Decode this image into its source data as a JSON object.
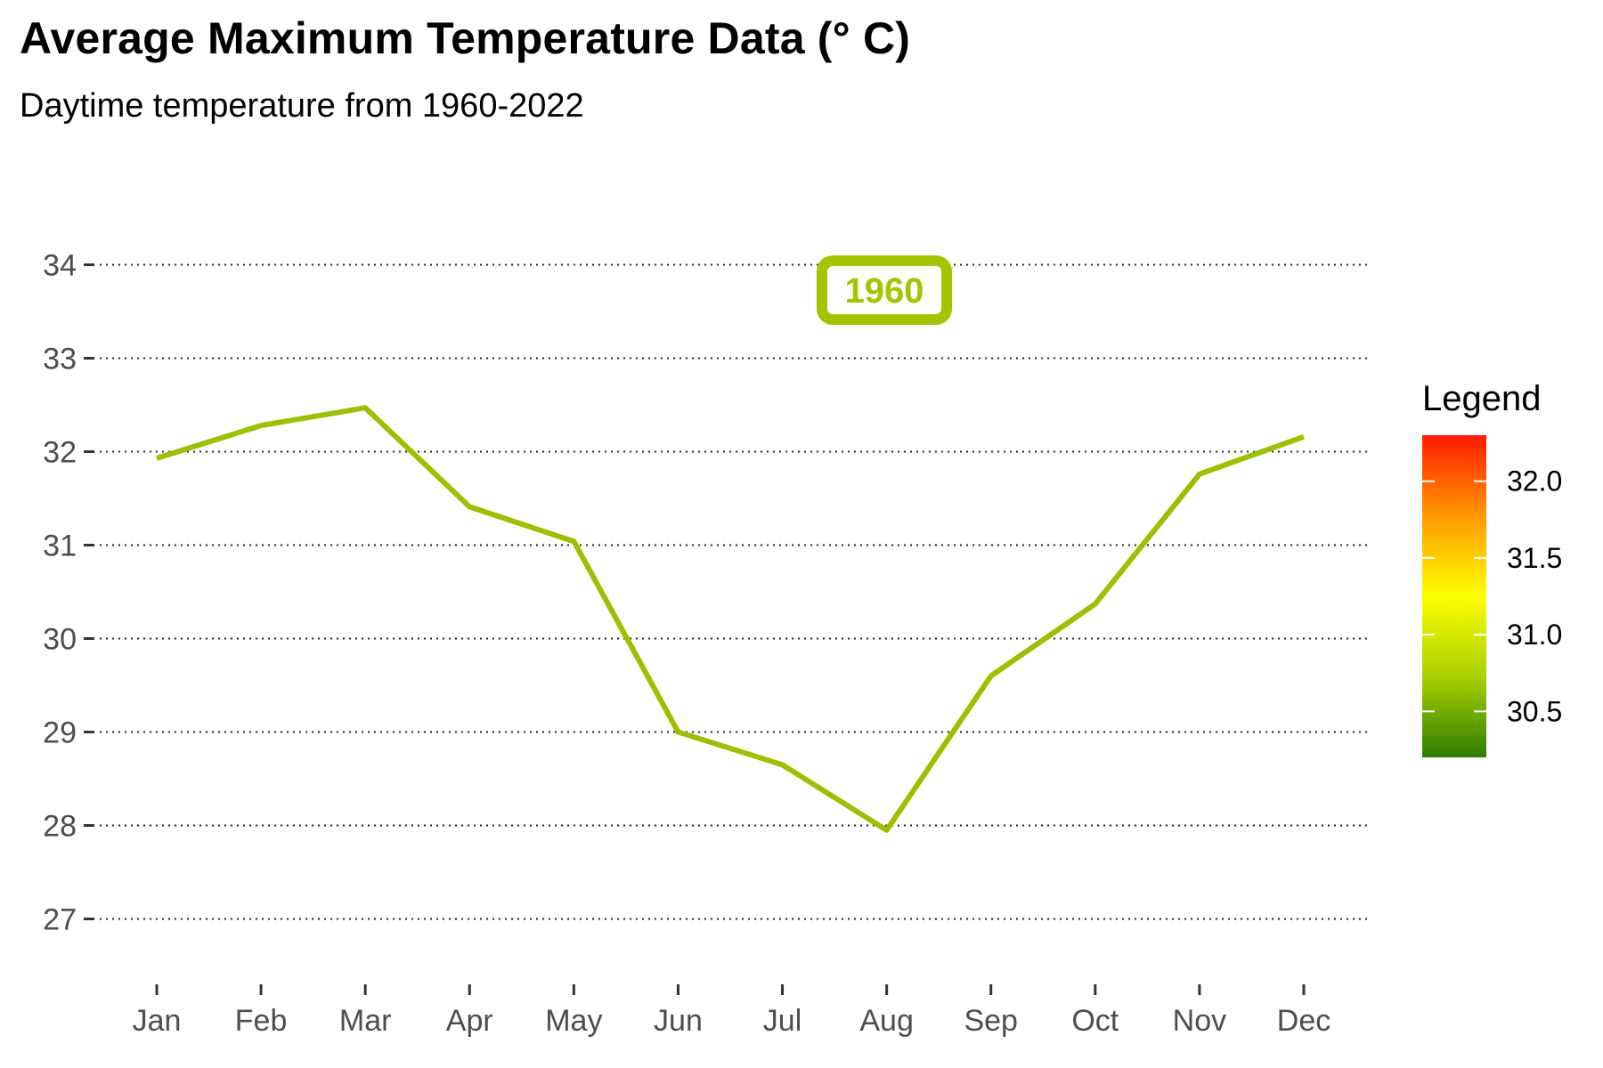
{
  "chart_data": {
    "type": "line",
    "title": "Average Maximum Temperature Data (° C)",
    "subtitle": "Daytime temperature from 1960-2022",
    "xlabel": "",
    "ylabel": "",
    "categories": [
      "Jan",
      "Feb",
      "Mar",
      "Apr",
      "May",
      "Jun",
      "Jul",
      "Aug",
      "Sep",
      "Oct",
      "Nov",
      "Dec"
    ],
    "series": [
      {
        "name": "1960",
        "values": [
          31.93,
          32.28,
          32.47,
          31.41,
          31.04,
          29.0,
          28.65,
          27.95,
          29.6,
          30.37,
          31.76,
          32.16
        ],
        "color": "#9cc000"
      }
    ],
    "ylim": [
      26.5,
      34.5
    ],
    "yticks": [
      27,
      28,
      29,
      30,
      31,
      32,
      33,
      34
    ],
    "grid": "horizontal dotted",
    "annotation": {
      "text": "1960",
      "color": "#a4c400"
    },
    "legend": {
      "title": "Legend",
      "position": "right",
      "range": [
        30.2,
        32.3
      ],
      "breaks": [
        30.5,
        31.0,
        31.5,
        32.0
      ],
      "labels": [
        "30.5",
        "31.0",
        "31.5",
        "32.0"
      ],
      "colors": [
        "#2e7d00",
        "#a8d000",
        "#ffff00",
        "#ff9900",
        "#ff1a00"
      ]
    }
  }
}
